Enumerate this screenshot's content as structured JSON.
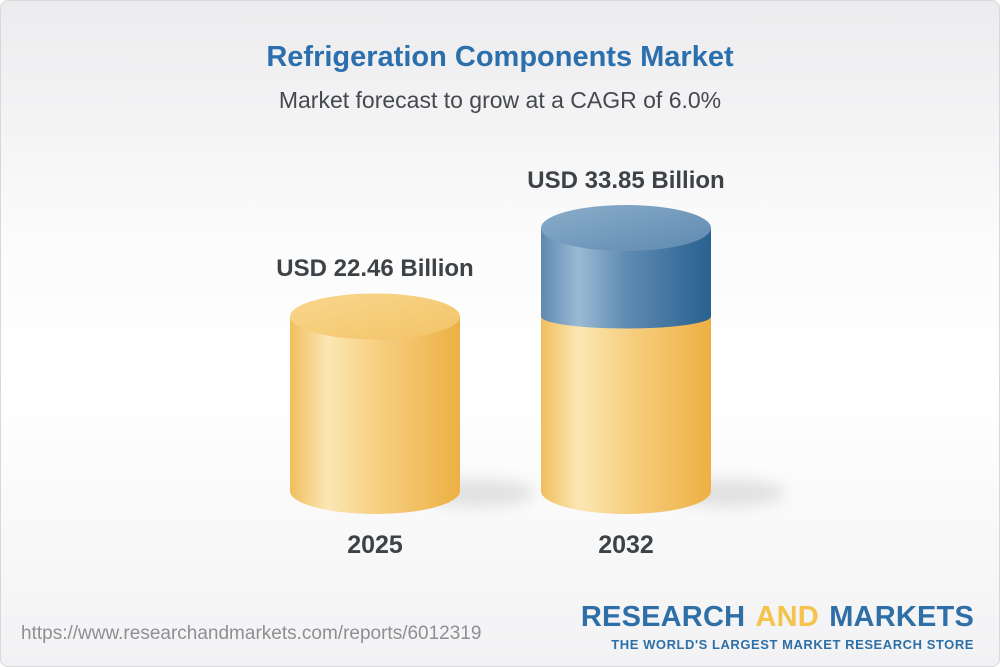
{
  "chart_data": {
    "type": "bar",
    "variant": "3d-cylinder",
    "title": "Refrigeration Components Market",
    "subtitle": "Market forecast to grow at a CAGR of 6.0%",
    "cagr_percent": 6.0,
    "unit": "USD Billion",
    "categories": [
      "2025",
      "2032"
    ],
    "values": [
      22.46,
      33.85
    ],
    "value_labels": [
      "USD 22.46 Billion",
      "USD 33.85 Billion"
    ],
    "series_note": "2032 cylinder shows the 2025 base in gold with the growth increment stacked in blue",
    "legend": false,
    "axes": false,
    "grid": false,
    "colors": {
      "base_gold": "#F5C767",
      "increment_blue": "#4C80AB",
      "title_blue": "#2B6FAD",
      "label_dark": "#3D4247"
    }
  },
  "footer": {
    "url": "https://www.researchandmarkets.com/reports/6012319",
    "logo": {
      "research": "RESEARCH",
      "and": "AND",
      "markets": "MARKETS",
      "tagline": "THE WORLD'S LARGEST MARKET RESEARCH STORE"
    }
  }
}
